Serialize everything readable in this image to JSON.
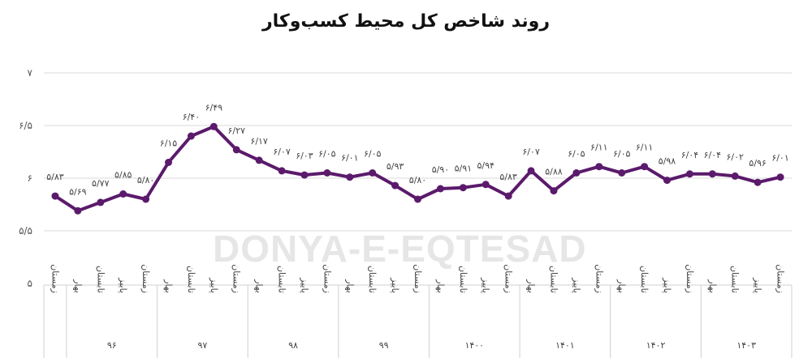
{
  "chart_data": {
    "type": "line",
    "title": "روند شاخص کل محیط کسب‌وکار",
    "xlabel": "",
    "ylabel": "",
    "ylim": [
      5,
      7
    ],
    "yticks": [
      5,
      5.5,
      6,
      6.5,
      7
    ],
    "ytick_labels": [
      "۵",
      "۵/۵",
      "۶",
      "۶/۵",
      "۷"
    ],
    "grid": true,
    "color": "#5b1a6b",
    "groups": [
      {
        "year": "",
        "seasons": [
          "زمستان"
        ]
      },
      {
        "year": "۹۶",
        "seasons": [
          "بهار",
          "تابستان",
          "پاییز",
          "زمستان"
        ]
      },
      {
        "year": "۹۷",
        "seasons": [
          "بهار",
          "تابستان",
          "پاییز",
          "زمستان"
        ]
      },
      {
        "year": "۹۸",
        "seasons": [
          "بهار",
          "تابستان",
          "پاییز",
          "زمستان"
        ]
      },
      {
        "year": "۹۹",
        "seasons": [
          "بهار",
          "تابستان",
          "پاییز",
          "زمستان"
        ]
      },
      {
        "year": "۱۴۰۰",
        "seasons": [
          "بهار",
          "تابستان",
          "پاییز",
          "زمستان"
        ]
      },
      {
        "year": "۱۴۰۱",
        "seasons": [
          "بهار",
          "تابستان",
          "پاییز",
          "زمستان"
        ]
      },
      {
        "year": "۱۴۰۲",
        "seasons": [
          "بهار",
          "تابستان",
          "پاییز",
          "زمستان"
        ]
      },
      {
        "year": "۱۴۰۳",
        "seasons": [
          "بهار",
          "تابستان",
          "پاییز",
          "زمستان"
        ]
      }
    ],
    "values": [
      5.83,
      5.69,
      5.77,
      5.85,
      5.8,
      6.15,
      6.4,
      6.49,
      6.27,
      6.17,
      6.07,
      6.03,
      6.05,
      6.01,
      6.05,
      5.93,
      5.8,
      5.9,
      5.91,
      5.94,
      5.83,
      6.07,
      5.88,
      6.05,
      6.11,
      6.05,
      6.11,
      5.98,
      6.04,
      6.04,
      6.02,
      5.96,
      6.01
    ]
  },
  "watermark": "DONYA-E-EQTESAD"
}
